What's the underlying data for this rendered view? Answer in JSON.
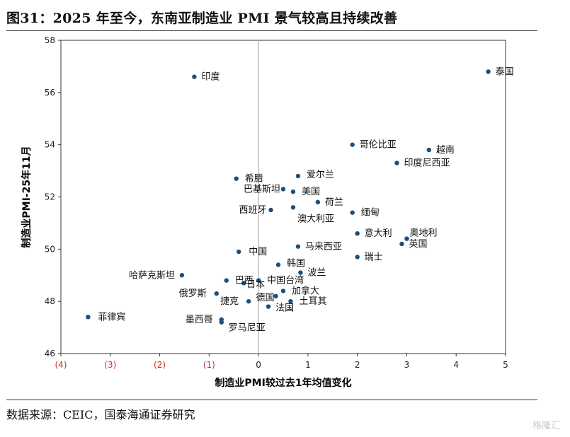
{
  "title": "图31：2025 年至今，东南亚制造业 PMI 景气较高且持续改善",
  "source": "数据来源：CEIC，国泰海通证券研究",
  "watermark": "格隆汇",
  "chart_data": {
    "type": "scatter",
    "xlabel": "制造业PMI较过去1年均值变化",
    "ylabel": "制造业PMI-25年11月",
    "xlim": [
      -4,
      5
    ],
    "ylim": [
      46,
      58
    ],
    "x_ticks": [
      -4,
      -3,
      -2,
      -1,
      0,
      1,
      2,
      3,
      4,
      5
    ],
    "x_tick_labels": [
      "(4)",
      "(3)",
      "(2)",
      "(1)",
      "0",
      "1",
      "2",
      "3",
      "4",
      "5"
    ],
    "y_ticks": [
      46,
      48,
      50,
      52,
      54,
      56,
      58
    ],
    "y_tick_labels": [
      "46",
      "48",
      "50",
      "52",
      "54",
      "56",
      "58"
    ],
    "negative_tick_color": "#d62728",
    "point_color": "#1f4e79",
    "zero_line_color": "#b0b0b0",
    "points": [
      {
        "label": "泰国",
        "x": 4.65,
        "y": 56.8
      },
      {
        "label": "印度",
        "x": -1.3,
        "y": 56.6
      },
      {
        "label": "哥伦比亚",
        "x": 1.9,
        "y": 54.0
      },
      {
        "label": "越南",
        "x": 3.45,
        "y": 53.8
      },
      {
        "label": "印度尼西亚",
        "x": 2.8,
        "y": 53.3
      },
      {
        "label": "希腊",
        "x": -0.45,
        "y": 52.7
      },
      {
        "label": "爱尔兰",
        "x": 0.8,
        "y": 52.8
      },
      {
        "label": "巴基斯坦",
        "x": 0.5,
        "y": 52.3
      },
      {
        "label": "美国",
        "x": 0.7,
        "y": 52.2
      },
      {
        "label": "荷兰",
        "x": 1.2,
        "y": 51.8
      },
      {
        "label": "西班牙",
        "x": 0.25,
        "y": 51.5
      },
      {
        "label": "澳大利亚",
        "x": 0.7,
        "y": 51.6
      },
      {
        "label": "缅甸",
        "x": 1.9,
        "y": 51.4
      },
      {
        "label": "意大利",
        "x": 2.0,
        "y": 50.6
      },
      {
        "label": "奥地利",
        "x": 3.0,
        "y": 50.4
      },
      {
        "label": "英国",
        "x": 2.9,
        "y": 50.2
      },
      {
        "label": "中国",
        "x": -0.4,
        "y": 49.9
      },
      {
        "label": "马来西亚",
        "x": 0.8,
        "y": 50.1
      },
      {
        "label": "瑞士",
        "x": 2.0,
        "y": 49.7
      },
      {
        "label": "韩国",
        "x": 0.4,
        "y": 49.4
      },
      {
        "label": "波兰",
        "x": 0.85,
        "y": 49.1
      },
      {
        "label": "哈萨克斯坦",
        "x": -1.55,
        "y": 49.0
      },
      {
        "label": "巴西",
        "x": -0.65,
        "y": 48.8
      },
      {
        "label": "日本",
        "x": -0.3,
        "y": 48.7
      },
      {
        "label": "中国台湾",
        "x": 0.0,
        "y": 48.8
      },
      {
        "label": "俄罗斯",
        "x": -0.85,
        "y": 48.3
      },
      {
        "label": "德国",
        "x": 0.35,
        "y": 48.2
      },
      {
        "label": "加拿大",
        "x": 0.5,
        "y": 48.4
      },
      {
        "label": "捷克",
        "x": -0.2,
        "y": 48.0
      },
      {
        "label": "土耳其",
        "x": 0.65,
        "y": 48.0
      },
      {
        "label": "法国",
        "x": 0.2,
        "y": 47.8
      },
      {
        "label": "菲律宾",
        "x": -3.45,
        "y": 47.4
      },
      {
        "label": "墨西哥",
        "x": -0.75,
        "y": 47.3
      },
      {
        "label": "罗马尼亚",
        "x": -0.75,
        "y": 47.2
      }
    ]
  }
}
